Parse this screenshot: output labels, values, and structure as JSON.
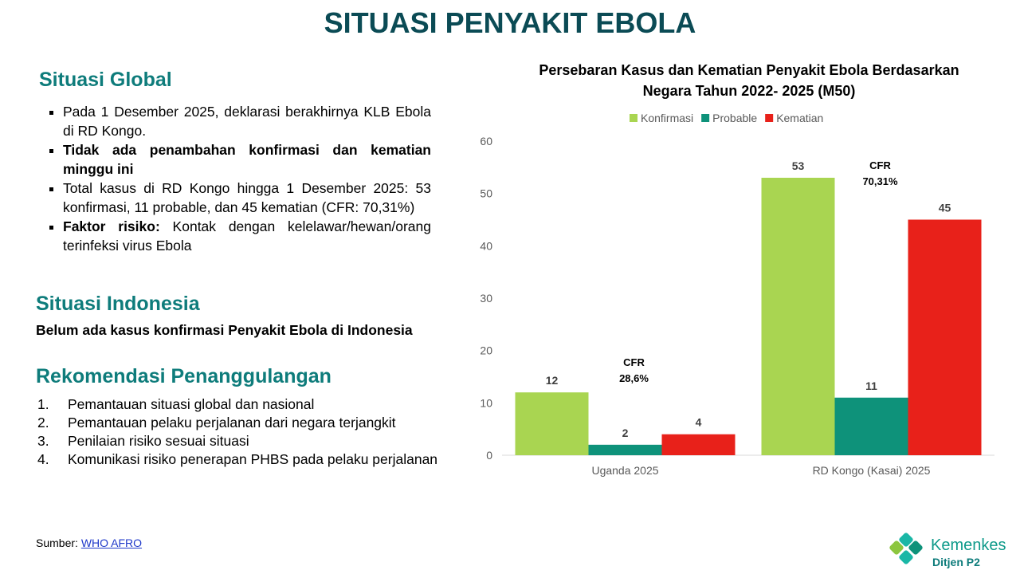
{
  "title": "SITUASI PENYAKIT EBOLA",
  "global": {
    "heading": "Situasi Global",
    "bullets": [
      [
        {
          "text": "Pada 1 Desember 2025, deklarasi berakhirnya KLB Ebola di RD Kongo."
        }
      ],
      [
        {
          "text": "Tidak ada penambahan konfirmasi dan kematian minggu ini",
          "bold": true
        }
      ],
      [
        {
          "text": "Total kasus di RD Kongo hingga 1 Desember 2025: 53 konfirmasi, 11  probable, dan 45 kematian (CFR: 70,31%)"
        }
      ],
      [
        {
          "text": "Faktor risiko:",
          "bold": true
        },
        {
          "text": " Kontak dengan kelelawar/hewan/orang terinfeksi virus Ebola"
        }
      ]
    ]
  },
  "indonesia": {
    "heading": "Situasi Indonesia",
    "text": "Belum ada kasus konfirmasi Penyakit Ebola di Indonesia"
  },
  "rekomendasi": {
    "heading": "Rekomendasi Penanggulangan",
    "items": [
      {
        "number": "1.",
        "text": "Pemantauan situasi global dan nasional"
      },
      {
        "number": "2.",
        "text": "Pemantauan pelaku perjalanan dari negara terjangkit"
      },
      {
        "number": "3.",
        "text": "Penilaian risiko sesuai situasi"
      },
      {
        "number": "4.",
        "text": "Komunikasi risiko penerapan PHBS pada pelaku perjalanan"
      }
    ]
  },
  "source": {
    "label": "Sumber:",
    "link": "WHO AFRO"
  },
  "logo": {
    "name": "Kemenkes",
    "unit": "Ditjen P2"
  },
  "chart_data": {
    "type": "bar",
    "title": "Persebaran Kasus dan Kematian Penyakit Ebola Berdasarkan Negara Tahun 2022- 2025 (M50)",
    "categories": [
      "Uganda 2025",
      "RD Kongo (Kasai) 2025"
    ],
    "series": [
      {
        "name": "Konfirmasi",
        "color": "#a9d551",
        "values": [
          12,
          53
        ]
      },
      {
        "name": "Probable",
        "color": "#0e927a",
        "values": [
          2,
          11
        ]
      },
      {
        "name": "Kematian",
        "color": "#e8211a",
        "values": [
          4,
          45
        ]
      }
    ],
    "ylim": [
      0,
      60
    ],
    "yticks": [
      0,
      10,
      20,
      30,
      40,
      50,
      60
    ],
    "legend": "top",
    "annotations": [
      [
        "CFR",
        "28,6%"
      ],
      [
        "CFR",
        "70,31%"
      ]
    ]
  }
}
